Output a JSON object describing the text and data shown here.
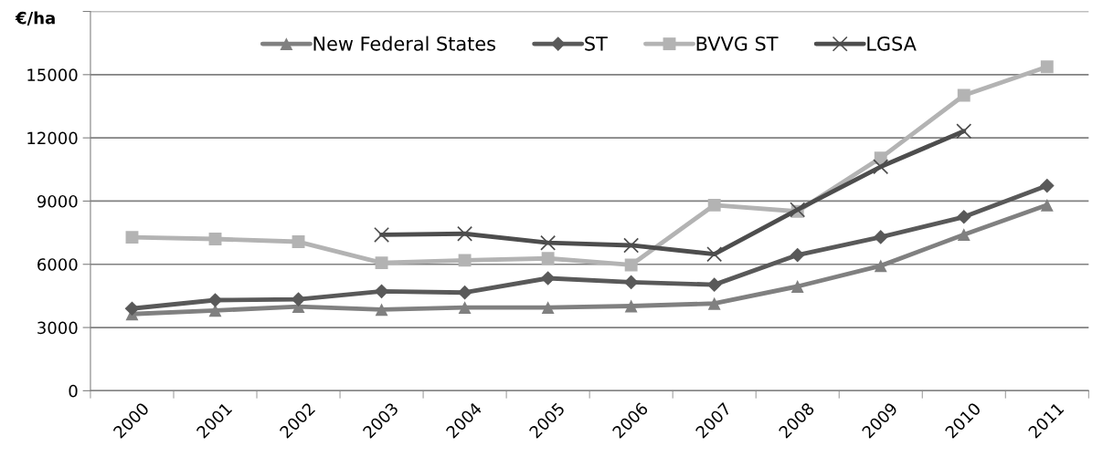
{
  "chart_data": {
    "type": "line",
    "ylabel": "€/ha",
    "categories": [
      "2000",
      "2001",
      "2002",
      "2003",
      "2004",
      "2005",
      "2006",
      "2007",
      "2008",
      "2009",
      "2010",
      "2011"
    ],
    "ylim": [
      0,
      18000
    ],
    "yticks": [
      0,
      3000,
      6000,
      9000,
      12000,
      15000,
      {
        "value": 18000,
        "label": null
      }
    ],
    "grid": "y",
    "legend": "top",
    "series": [
      {
        "name": "New Federal States",
        "color": "#808080",
        "marker": "triangle",
        "values": [
          3640,
          3810,
          3990,
          3850,
          3950,
          3950,
          4020,
          4140,
          4950,
          5930,
          7410,
          8810
        ]
      },
      {
        "name": "ST",
        "color": "#595959",
        "marker": "diamond",
        "values": [
          3900,
          4300,
          4340,
          4720,
          4660,
          5340,
          5150,
          5030,
          6440,
          7290,
          8250,
          9730
        ]
      },
      {
        "name": "BVVG ST",
        "color": "#b3b3b3",
        "marker": "square",
        "values": [
          7280,
          7200,
          7070,
          6070,
          6190,
          6280,
          5970,
          8810,
          8510,
          11050,
          14020,
          15370
        ]
      },
      {
        "name": "LGSA",
        "color": "#4d4d4d",
        "marker": "cross",
        "values": [
          null,
          null,
          null,
          7400,
          7450,
          7020,
          6900,
          6480,
          8590,
          10630,
          12320,
          null
        ]
      }
    ]
  }
}
